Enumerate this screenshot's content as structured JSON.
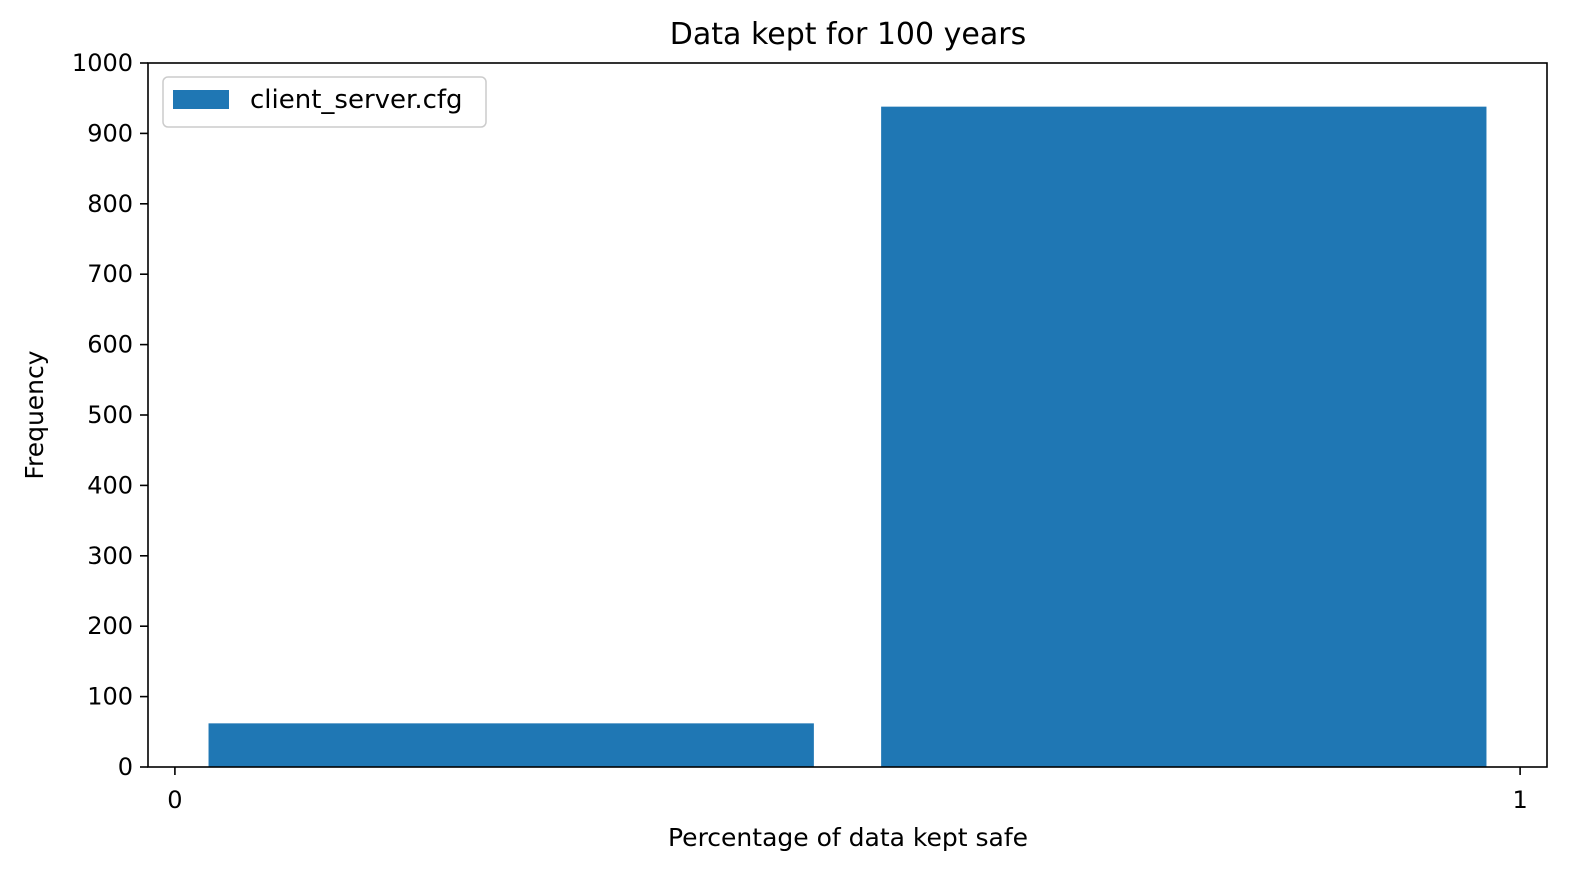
{
  "chart_data": {
    "type": "bar",
    "title": "Data kept for 100 years",
    "xlabel": "Percentage of data kept safe",
    "ylabel": "Frequency",
    "xlim": [
      -0.02,
      1.02
    ],
    "ylim": [
      0,
      1000
    ],
    "x_ticks": [
      0,
      1
    ],
    "x_tick_labels": [
      "0",
      "1"
    ],
    "y_ticks": [
      0,
      100,
      200,
      300,
      400,
      500,
      600,
      700,
      800,
      900,
      1000
    ],
    "y_tick_labels": [
      "0",
      "100",
      "200",
      "300",
      "400",
      "500",
      "600",
      "700",
      "800",
      "900",
      "1000"
    ],
    "grid": false,
    "legend_position": "upper-left",
    "series": [
      {
        "name": "client_server.cfg",
        "color": "#1f77b4",
        "bins": [
          {
            "from": 0.025,
            "to": 0.475,
            "value": 62
          },
          {
            "from": 0.525,
            "to": 0.975,
            "value": 938
          }
        ]
      }
    ]
  }
}
